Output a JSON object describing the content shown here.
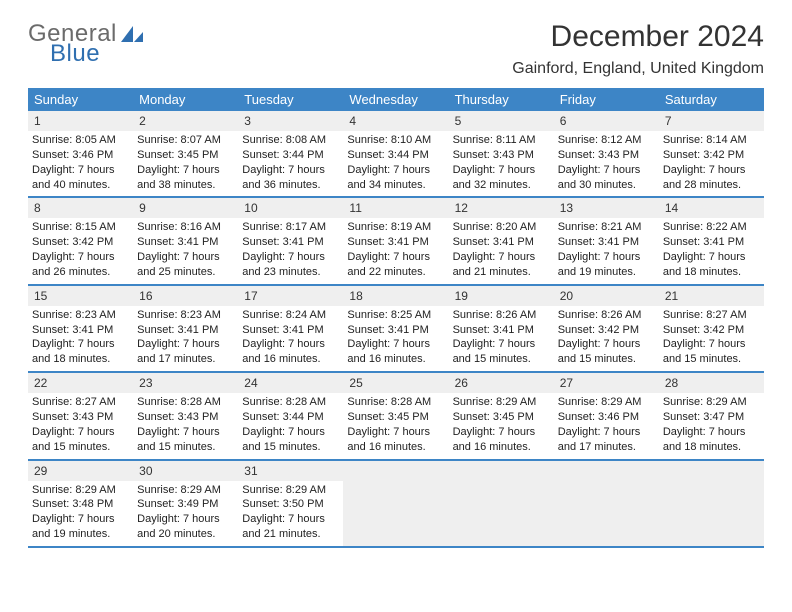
{
  "logo": {
    "line1": "General",
    "line2": "Blue"
  },
  "title": "December 2024",
  "location": "Gainford, England, United Kingdom",
  "colors": {
    "header_bg": "#3d85c6",
    "header_text": "#ffffff",
    "daynum_bg": "#efefef",
    "border": "#3d85c6",
    "logo_gray": "#6b6b6b",
    "logo_blue": "#2f6fb0"
  },
  "dow": [
    "Sunday",
    "Monday",
    "Tuesday",
    "Wednesday",
    "Thursday",
    "Friday",
    "Saturday"
  ],
  "weeks": [
    [
      {
        "num": "1",
        "sunrise": "Sunrise: 8:05 AM",
        "sunset": "Sunset: 3:46 PM",
        "daylight": "Daylight: 7 hours and 40 minutes."
      },
      {
        "num": "2",
        "sunrise": "Sunrise: 8:07 AM",
        "sunset": "Sunset: 3:45 PM",
        "daylight": "Daylight: 7 hours and 38 minutes."
      },
      {
        "num": "3",
        "sunrise": "Sunrise: 8:08 AM",
        "sunset": "Sunset: 3:44 PM",
        "daylight": "Daylight: 7 hours and 36 minutes."
      },
      {
        "num": "4",
        "sunrise": "Sunrise: 8:10 AM",
        "sunset": "Sunset: 3:44 PM",
        "daylight": "Daylight: 7 hours and 34 minutes."
      },
      {
        "num": "5",
        "sunrise": "Sunrise: 8:11 AM",
        "sunset": "Sunset: 3:43 PM",
        "daylight": "Daylight: 7 hours and 32 minutes."
      },
      {
        "num": "6",
        "sunrise": "Sunrise: 8:12 AM",
        "sunset": "Sunset: 3:43 PM",
        "daylight": "Daylight: 7 hours and 30 minutes."
      },
      {
        "num": "7",
        "sunrise": "Sunrise: 8:14 AM",
        "sunset": "Sunset: 3:42 PM",
        "daylight": "Daylight: 7 hours and 28 minutes."
      }
    ],
    [
      {
        "num": "8",
        "sunrise": "Sunrise: 8:15 AM",
        "sunset": "Sunset: 3:42 PM",
        "daylight": "Daylight: 7 hours and 26 minutes."
      },
      {
        "num": "9",
        "sunrise": "Sunrise: 8:16 AM",
        "sunset": "Sunset: 3:41 PM",
        "daylight": "Daylight: 7 hours and 25 minutes."
      },
      {
        "num": "10",
        "sunrise": "Sunrise: 8:17 AM",
        "sunset": "Sunset: 3:41 PM",
        "daylight": "Daylight: 7 hours and 23 minutes."
      },
      {
        "num": "11",
        "sunrise": "Sunrise: 8:19 AM",
        "sunset": "Sunset: 3:41 PM",
        "daylight": "Daylight: 7 hours and 22 minutes."
      },
      {
        "num": "12",
        "sunrise": "Sunrise: 8:20 AM",
        "sunset": "Sunset: 3:41 PM",
        "daylight": "Daylight: 7 hours and 21 minutes."
      },
      {
        "num": "13",
        "sunrise": "Sunrise: 8:21 AM",
        "sunset": "Sunset: 3:41 PM",
        "daylight": "Daylight: 7 hours and 19 minutes."
      },
      {
        "num": "14",
        "sunrise": "Sunrise: 8:22 AM",
        "sunset": "Sunset: 3:41 PM",
        "daylight": "Daylight: 7 hours and 18 minutes."
      }
    ],
    [
      {
        "num": "15",
        "sunrise": "Sunrise: 8:23 AM",
        "sunset": "Sunset: 3:41 PM",
        "daylight": "Daylight: 7 hours and 18 minutes."
      },
      {
        "num": "16",
        "sunrise": "Sunrise: 8:23 AM",
        "sunset": "Sunset: 3:41 PM",
        "daylight": "Daylight: 7 hours and 17 minutes."
      },
      {
        "num": "17",
        "sunrise": "Sunrise: 8:24 AM",
        "sunset": "Sunset: 3:41 PM",
        "daylight": "Daylight: 7 hours and 16 minutes."
      },
      {
        "num": "18",
        "sunrise": "Sunrise: 8:25 AM",
        "sunset": "Sunset: 3:41 PM",
        "daylight": "Daylight: 7 hours and 16 minutes."
      },
      {
        "num": "19",
        "sunrise": "Sunrise: 8:26 AM",
        "sunset": "Sunset: 3:41 PM",
        "daylight": "Daylight: 7 hours and 15 minutes."
      },
      {
        "num": "20",
        "sunrise": "Sunrise: 8:26 AM",
        "sunset": "Sunset: 3:42 PM",
        "daylight": "Daylight: 7 hours and 15 minutes."
      },
      {
        "num": "21",
        "sunrise": "Sunrise: 8:27 AM",
        "sunset": "Sunset: 3:42 PM",
        "daylight": "Daylight: 7 hours and 15 minutes."
      }
    ],
    [
      {
        "num": "22",
        "sunrise": "Sunrise: 8:27 AM",
        "sunset": "Sunset: 3:43 PM",
        "daylight": "Daylight: 7 hours and 15 minutes."
      },
      {
        "num": "23",
        "sunrise": "Sunrise: 8:28 AM",
        "sunset": "Sunset: 3:43 PM",
        "daylight": "Daylight: 7 hours and 15 minutes."
      },
      {
        "num": "24",
        "sunrise": "Sunrise: 8:28 AM",
        "sunset": "Sunset: 3:44 PM",
        "daylight": "Daylight: 7 hours and 15 minutes."
      },
      {
        "num": "25",
        "sunrise": "Sunrise: 8:28 AM",
        "sunset": "Sunset: 3:45 PM",
        "daylight": "Daylight: 7 hours and 16 minutes."
      },
      {
        "num": "26",
        "sunrise": "Sunrise: 8:29 AM",
        "sunset": "Sunset: 3:45 PM",
        "daylight": "Daylight: 7 hours and 16 minutes."
      },
      {
        "num": "27",
        "sunrise": "Sunrise: 8:29 AM",
        "sunset": "Sunset: 3:46 PM",
        "daylight": "Daylight: 7 hours and 17 minutes."
      },
      {
        "num": "28",
        "sunrise": "Sunrise: 8:29 AM",
        "sunset": "Sunset: 3:47 PM",
        "daylight": "Daylight: 7 hours and 18 minutes."
      }
    ],
    [
      {
        "num": "29",
        "sunrise": "Sunrise: 8:29 AM",
        "sunset": "Sunset: 3:48 PM",
        "daylight": "Daylight: 7 hours and 19 minutes."
      },
      {
        "num": "30",
        "sunrise": "Sunrise: 8:29 AM",
        "sunset": "Sunset: 3:49 PM",
        "daylight": "Daylight: 7 hours and 20 minutes."
      },
      {
        "num": "31",
        "sunrise": "Sunrise: 8:29 AM",
        "sunset": "Sunset: 3:50 PM",
        "daylight": "Daylight: 7 hours and 21 minutes."
      },
      null,
      null,
      null,
      null
    ]
  ]
}
